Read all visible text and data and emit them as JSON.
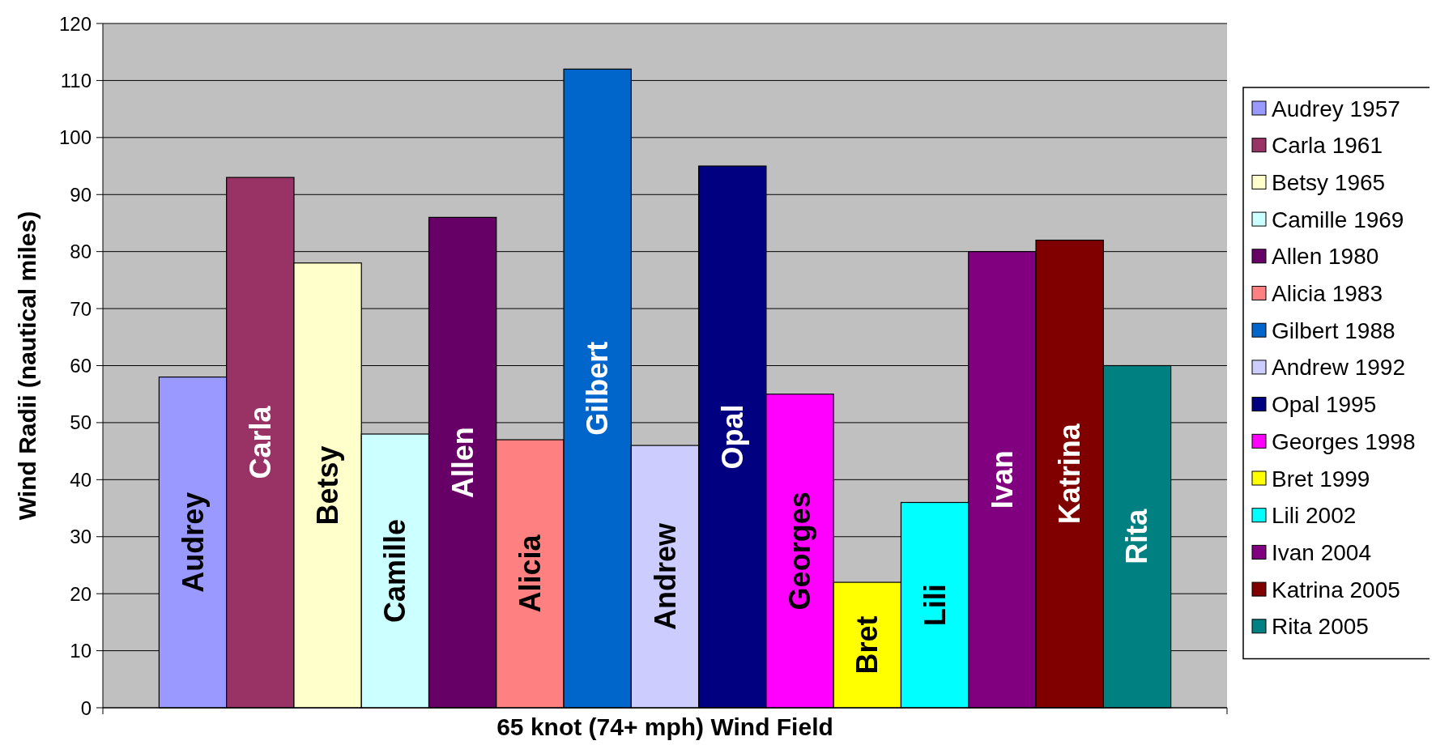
{
  "chart_data": {
    "type": "bar",
    "ylabel": "Wind Radii (nautical miles)",
    "categories": [
      "65 knot (74+ mph) Wind Field"
    ],
    "series": [
      {
        "name": "Audrey 1957",
        "color": "#9999ff",
        "values": [
          58
        ]
      },
      {
        "name": "Carla 1961",
        "color": "#993366",
        "values": [
          93
        ]
      },
      {
        "name": "Betsy 1965",
        "color": "#ffffcc",
        "values": [
          78
        ]
      },
      {
        "name": "Camille 1969",
        "color": "#ccffff",
        "values": [
          48
        ]
      },
      {
        "name": "Allen 1980",
        "color": "#660066",
        "values": [
          86
        ]
      },
      {
        "name": "Alicia 1983",
        "color": "#ff8080",
        "values": [
          47
        ]
      },
      {
        "name": "Gilbert 1988",
        "color": "#0066cc",
        "values": [
          112
        ]
      },
      {
        "name": "Andrew 1992",
        "color": "#ccccff",
        "values": [
          46
        ]
      },
      {
        "name": "Opal 1995",
        "color": "#000080",
        "values": [
          95
        ]
      },
      {
        "name": "Georges 1998",
        "color": "#ff00ff",
        "values": [
          55
        ]
      },
      {
        "name": "Bret 1999",
        "color": "#ffff00",
        "values": [
          22
        ]
      },
      {
        "name": "Lili 2002",
        "color": "#00ffff",
        "values": [
          36
        ]
      },
      {
        "name": "Ivan 2004",
        "color": "#800080",
        "values": [
          80
        ]
      },
      {
        "name": "Katrina 2005",
        "color": "#800000",
        "values": [
          82
        ]
      },
      {
        "name": "Rita 2005",
        "color": "#008080",
        "values": [
          60
        ]
      }
    ],
    "annotations": [
      "Audrey",
      "Carla",
      "Betsy",
      "Camille",
      "Allen",
      "Alicia",
      "Gilbert",
      "Andrew",
      "Opal",
      "Georges",
      "Bret",
      "Lili",
      "Ivan",
      "Katrina",
      "Rita"
    ],
    "ylim": [
      0,
      120
    ],
    "yticks": [
      0,
      10,
      20,
      30,
      40,
      50,
      60,
      70,
      80,
      90,
      100,
      110,
      120
    ],
    "grid": "y",
    "legend": "right"
  }
}
